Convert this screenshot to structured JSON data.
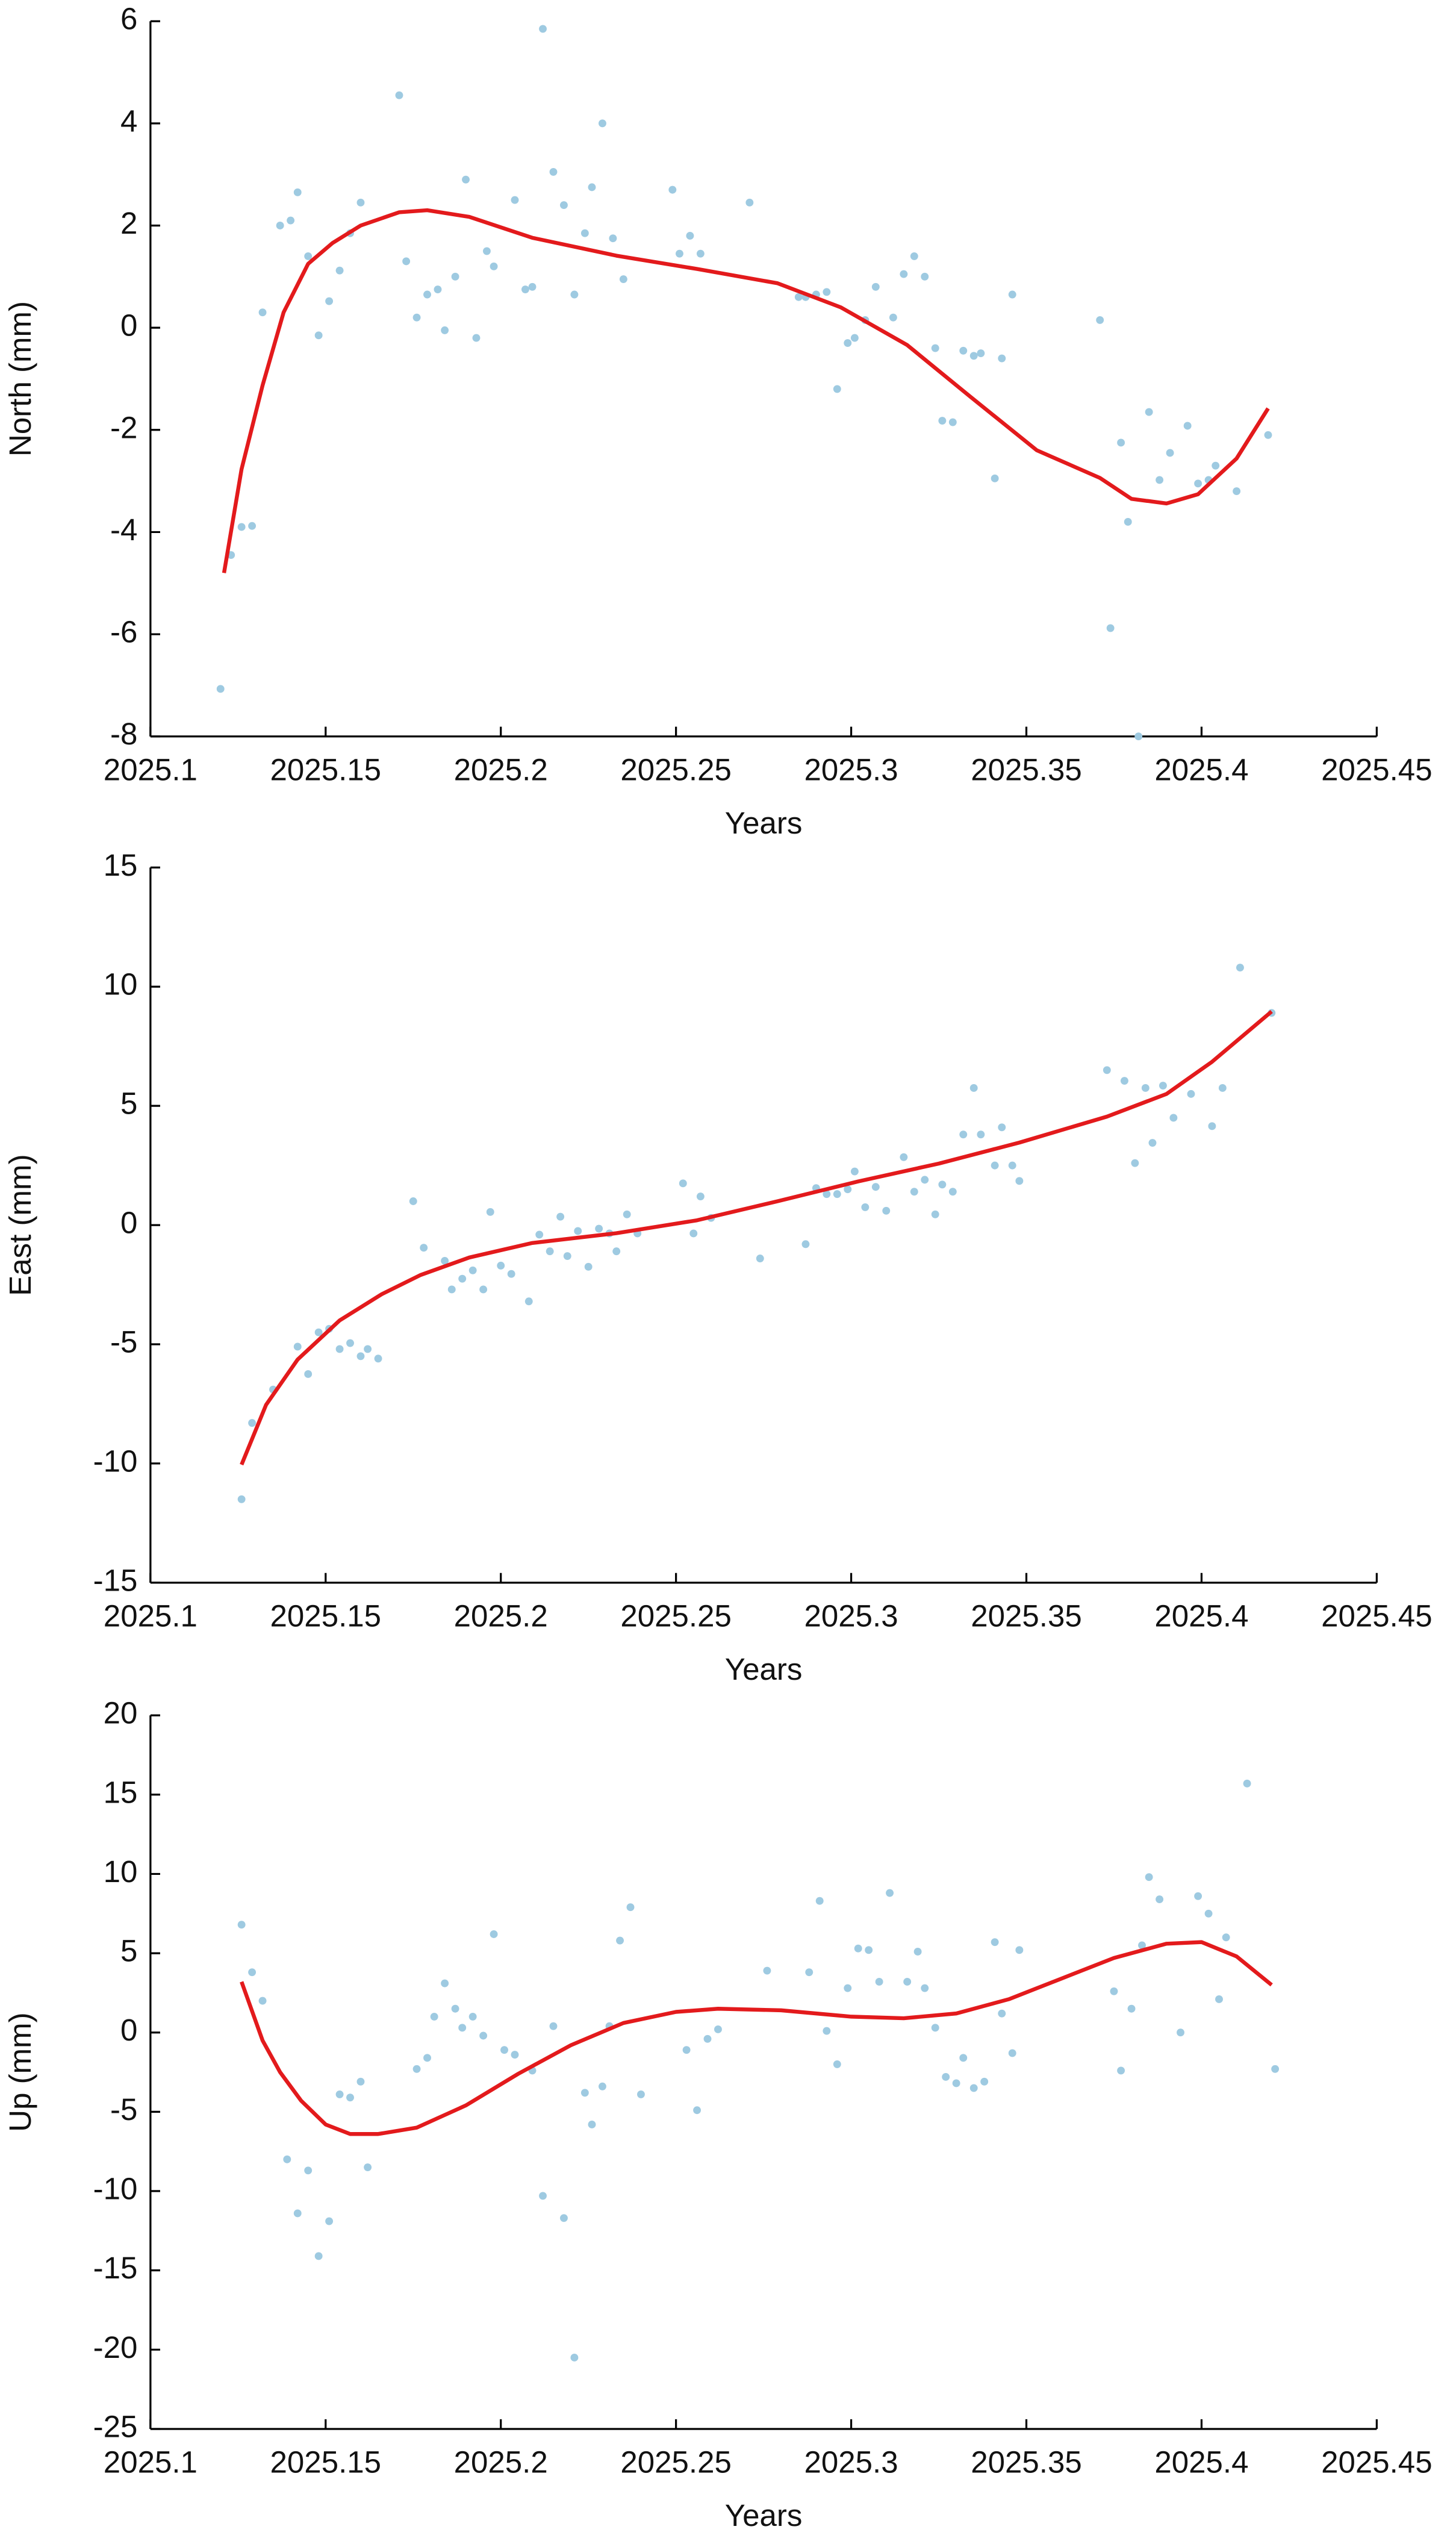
{
  "chart_data": [
    {
      "type": "scatter",
      "ylabel": "North (mm)",
      "xlabel": "Years",
      "xlim": [
        2025.1,
        2025.45
      ],
      "xticks": [
        2025.1,
        2025.15,
        2025.2,
        2025.25,
        2025.3,
        2025.35,
        2025.4,
        2025.45
      ],
      "ylim": [
        -8,
        6
      ],
      "yticks": [
        -8,
        -6,
        -4,
        -2,
        0,
        2,
        4,
        6
      ],
      "series": [
        {
          "mode": "markers",
          "color": "#9ecae1",
          "x": [
            2025.12,
            2025.123,
            2025.126,
            2025.129,
            2025.132,
            2025.137,
            2025.14,
            2025.142,
            2025.145,
            2025.148,
            2025.151,
            2025.154,
            2025.157,
            2025.16,
            2025.171,
            2025.173,
            2025.176,
            2025.179,
            2025.182,
            2025.184,
            2025.187,
            2025.19,
            2025.193,
            2025.196,
            2025.198,
            2025.204,
            2025.207,
            2025.209,
            2025.212,
            2025.215,
            2025.218,
            2025.221,
            2025.224,
            2025.226,
            2025.229,
            2025.232,
            2025.235,
            2025.249,
            2025.251,
            2025.254,
            2025.257,
            2025.271,
            2025.285,
            2025.287,
            2025.29,
            2025.293,
            2025.296,
            2025.299,
            2025.301,
            2025.304,
            2025.307,
            2025.312,
            2025.315,
            2025.318,
            2025.321,
            2025.324,
            2025.326,
            2025.329,
            2025.332,
            2025.335,
            2025.337,
            2025.341,
            2025.343,
            2025.346,
            2025.371,
            2025.374,
            2025.377,
            2025.379,
            2025.382,
            2025.385,
            2025.388,
            2025.391,
            2025.396,
            2025.399,
            2025.402,
            2025.404,
            2025.41,
            2025.419
          ],
          "values": [
            -7.07,
            -4.45,
            -3.9,
            -3.88,
            0.3,
            2.0,
            2.1,
            2.65,
            1.4,
            -0.15,
            0.52,
            1.12,
            1.85,
            2.45,
            4.55,
            1.3,
            0.2,
            0.65,
            0.75,
            -0.05,
            1.0,
            2.9,
            -0.2,
            1.5,
            1.2,
            2.5,
            0.75,
            0.8,
            5.85,
            3.05,
            2.4,
            0.65,
            1.85,
            2.75,
            4.0,
            1.75,
            0.95,
            2.7,
            1.45,
            1.8,
            1.45,
            2.45,
            0.6,
            0.6,
            0.65,
            0.7,
            -1.2,
            -0.3,
            -0.2,
            0.15,
            0.8,
            0.2,
            1.05,
            1.4,
            1.0,
            -0.4,
            -1.82,
            -1.85,
            -0.45,
            -0.55,
            -0.5,
            -2.95,
            -0.6,
            0.65,
            0.15,
            -5.88,
            -2.25,
            -3.8,
            -8.0,
            -1.65,
            -2.98,
            -2.45,
            -1.92,
            -3.05,
            -2.98,
            -2.7,
            -3.2,
            -2.1
          ]
        },
        {
          "mode": "lines",
          "color": "#e31a1c",
          "x": [
            2025.121,
            2025.126,
            2025.132,
            2025.138,
            2025.145,
            2025.152,
            2025.16,
            2025.171,
            2025.179,
            2025.191,
            2025.209,
            2025.233,
            2025.256,
            2025.279,
            2025.297,
            2025.316,
            2025.334,
            2025.353,
            2025.371,
            2025.38,
            2025.39,
            2025.399,
            2025.41,
            2025.419
          ],
          "values": [
            -4.8,
            -2.77,
            -1.13,
            0.3,
            1.25,
            1.66,
            2.0,
            2.26,
            2.3,
            2.17,
            1.76,
            1.41,
            1.15,
            0.87,
            0.4,
            -0.34,
            -1.35,
            -2.4,
            -2.94,
            -3.35,
            -3.44,
            -3.26,
            -2.56,
            -1.58
          ]
        }
      ]
    },
    {
      "type": "scatter",
      "ylabel": "East (mm)",
      "xlabel": "Years",
      "xlim": [
        2025.1,
        2025.45
      ],
      "xticks": [
        2025.1,
        2025.15,
        2025.2,
        2025.25,
        2025.3,
        2025.35,
        2025.4,
        2025.45
      ],
      "ylim": [
        -15,
        15
      ],
      "yticks": [
        -15,
        -10,
        -5,
        0,
        5,
        10,
        15
      ],
      "series": [
        {
          "mode": "markers",
          "color": "#9ecae1",
          "x": [
            2025.126,
            2025.129,
            2025.135,
            2025.142,
            2025.145,
            2025.148,
            2025.151,
            2025.154,
            2025.157,
            2025.16,
            2025.162,
            2025.165,
            2025.175,
            2025.178,
            2025.184,
            2025.186,
            2025.189,
            2025.192,
            2025.195,
            2025.197,
            2025.2,
            2025.203,
            2025.208,
            2025.211,
            2025.214,
            2025.217,
            2025.219,
            2025.222,
            2025.225,
            2025.228,
            2025.231,
            2025.233,
            2025.236,
            2025.239,
            2025.252,
            2025.255,
            2025.257,
            2025.26,
            2025.274,
            2025.287,
            2025.29,
            2025.293,
            2025.296,
            2025.299,
            2025.301,
            2025.304,
            2025.307,
            2025.31,
            2025.315,
            2025.318,
            2025.321,
            2025.324,
            2025.326,
            2025.329,
            2025.332,
            2025.335,
            2025.337,
            2025.341,
            2025.343,
            2025.346,
            2025.348,
            2025.373,
            2025.378,
            2025.381,
            2025.384,
            2025.386,
            2025.389,
            2025.392,
            2025.397,
            2025.403,
            2025.406,
            2025.411,
            2025.42
          ],
          "values": [
            -11.5,
            -8.3,
            -6.9,
            -5.1,
            -6.25,
            -4.5,
            -4.35,
            -5.2,
            -4.95,
            -5.5,
            -5.2,
            -5.6,
            1.0,
            -0.95,
            -1.5,
            -2.7,
            -2.25,
            -1.9,
            -2.7,
            0.55,
            -1.7,
            -2.05,
            -3.2,
            -0.4,
            -1.1,
            0.35,
            -1.3,
            -0.25,
            -1.75,
            -0.15,
            -0.35,
            -1.1,
            0.45,
            -0.35,
            1.75,
            -0.35,
            1.2,
            0.3,
            -1.4,
            -0.8,
            1.55,
            1.3,
            1.3,
            1.5,
            2.25,
            0.75,
            1.6,
            0.6,
            2.85,
            1.4,
            1.9,
            0.45,
            1.7,
            1.4,
            3.8,
            5.75,
            3.8,
            2.5,
            4.1,
            2.5,
            1.85,
            6.5,
            6.05,
            2.6,
            5.75,
            3.45,
            5.85,
            4.5,
            5.5,
            4.15,
            5.75,
            10.8,
            8.9
          ]
        },
        {
          "mode": "lines",
          "color": "#e31a1c",
          "x": [
            2025.126,
            2025.133,
            2025.142,
            2025.154,
            2025.166,
            2025.177,
            2025.191,
            2025.209,
            2025.233,
            2025.256,
            2025.279,
            2025.302,
            2025.325,
            2025.348,
            2025.373,
            2025.39,
            2025.403,
            2025.42
          ],
          "values": [
            -10.05,
            -7.54,
            -5.64,
            -4.0,
            -2.9,
            -2.1,
            -1.36,
            -0.75,
            -0.34,
            0.2,
            1.0,
            1.83,
            2.58,
            3.46,
            4.55,
            5.5,
            6.85,
            8.96
          ]
        }
      ]
    },
    {
      "type": "scatter",
      "ylabel": "Up (mm)",
      "xlabel": "Years",
      "xlim": [
        2025.1,
        2025.45
      ],
      "xticks": [
        2025.1,
        2025.15,
        2025.2,
        2025.25,
        2025.3,
        2025.35,
        2025.4,
        2025.45
      ],
      "ylim": [
        -25,
        20
      ],
      "yticks": [
        -25,
        -20,
        -15,
        -10,
        -5,
        0,
        5,
        10,
        15,
        20
      ],
      "series": [
        {
          "mode": "markers",
          "color": "#9ecae1",
          "x": [
            2025.126,
            2025.129,
            2025.132,
            2025.139,
            2025.142,
            2025.145,
            2025.148,
            2025.151,
            2025.154,
            2025.157,
            2025.16,
            2025.162,
            2025.176,
            2025.179,
            2025.181,
            2025.184,
            2025.187,
            2025.189,
            2025.192,
            2025.195,
            2025.198,
            2025.201,
            2025.204,
            2025.209,
            2025.212,
            2025.215,
            2025.218,
            2025.221,
            2025.224,
            2025.226,
            2025.229,
            2025.231,
            2025.234,
            2025.237,
            2025.24,
            2025.253,
            2025.256,
            2025.259,
            2025.262,
            2025.276,
            2025.288,
            2025.291,
            2025.293,
            2025.296,
            2025.299,
            2025.302,
            2025.305,
            2025.308,
            2025.311,
            2025.316,
            2025.319,
            2025.321,
            2025.324,
            2025.327,
            2025.33,
            2025.332,
            2025.335,
            2025.338,
            2025.341,
            2025.343,
            2025.346,
            2025.348,
            2025.375,
            2025.377,
            2025.38,
            2025.383,
            2025.385,
            2025.388,
            2025.394,
            2025.399,
            2025.402,
            2025.405,
            2025.407,
            2025.413,
            2025.421
          ],
          "values": [
            6.8,
            3.8,
            2.0,
            -8.0,
            -11.4,
            -8.7,
            -14.1,
            -11.9,
            -3.9,
            -4.1,
            -3.1,
            -8.5,
            -2.3,
            -1.6,
            1.0,
            3.1,
            1.5,
            0.3,
            1.0,
            -0.2,
            6.2,
            -1.1,
            -1.4,
            -2.4,
            -10.3,
            0.4,
            -11.7,
            -20.5,
            -3.8,
            -5.8,
            -3.4,
            0.4,
            5.8,
            7.9,
            -3.9,
            -1.1,
            -4.9,
            -0.4,
            0.2,
            3.9,
            3.8,
            8.3,
            0.1,
            -2.0,
            2.8,
            5.3,
            5.2,
            3.2,
            8.8,
            3.2,
            5.1,
            2.8,
            0.3,
            -2.8,
            -3.2,
            -1.6,
            -3.5,
            -3.1,
            5.7,
            1.2,
            -1.3,
            5.2,
            2.6,
            -2.4,
            1.5,
            5.5,
            9.8,
            8.4,
            0.0,
            8.6,
            7.5,
            2.1,
            6.0,
            15.7,
            -2.3
          ]
        },
        {
          "mode": "lines",
          "color": "#e31a1c",
          "x": [
            2025.126,
            2025.132,
            2025.137,
            2025.143,
            2025.15,
            2025.157,
            2025.165,
            2025.176,
            2025.19,
            2025.205,
            2025.22,
            2025.235,
            2025.25,
            2025.262,
            2025.28,
            2025.3,
            2025.315,
            2025.33,
            2025.345,
            2025.36,
            2025.375,
            2025.39,
            2025.4,
            2025.41,
            2025.42
          ],
          "values": [
            3.2,
            -0.5,
            -2.5,
            -4.3,
            -5.8,
            -6.4,
            -6.4,
            -6.0,
            -4.6,
            -2.6,
            -0.8,
            0.6,
            1.3,
            1.5,
            1.4,
            1.0,
            0.9,
            1.2,
            2.1,
            3.4,
            4.7,
            5.6,
            5.7,
            4.8,
            3.0
          ]
        }
      ]
    }
  ]
}
